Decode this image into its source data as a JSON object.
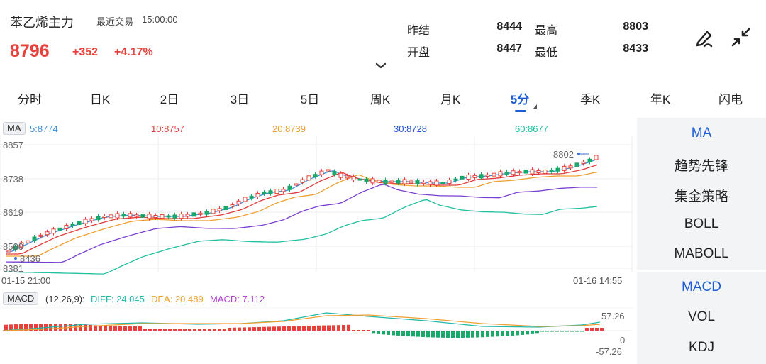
{
  "header": {
    "title": "苯乙烯主力",
    "trade_label": "最近交易",
    "trade_time": "15:00:00",
    "price": "8796",
    "change": "+352",
    "change_pct": "+4.17%",
    "stats": [
      {
        "label": "昨结",
        "value": "8444"
      },
      {
        "label": "最高",
        "value": "8803"
      },
      {
        "label": "开盘",
        "value": "8447"
      },
      {
        "label": "最低",
        "value": "8433"
      }
    ],
    "icons": [
      "draw-pen-icon",
      "collapse-arrows-icon",
      "chevron-down-icon"
    ]
  },
  "tabs": {
    "items": [
      "分时",
      "日K",
      "2日",
      "3日",
      "5日",
      "周K",
      "月K",
      "5分",
      "季K",
      "年K",
      "闪电"
    ],
    "active_index": 7
  },
  "ma_legend": {
    "tag": "MA",
    "items": [
      {
        "label": "5:8774",
        "color": "#3b8fe0"
      },
      {
        "label": "10:8757",
        "color": "#e23b3b"
      },
      {
        "label": "20:8739",
        "color": "#f0a030"
      },
      {
        "label": "30:8728",
        "color": "#7a3fd0"
      },
      {
        "label": "60:8677",
        "color": "#20c0a0"
      }
    ]
  },
  "main_axis": {
    "ticks": [
      "8857",
      "8738",
      "8619",
      "8500",
      "8381"
    ],
    "max_label": "8802",
    "min_label": "8436"
  },
  "time_axis": {
    "start": "01-15 21:00",
    "end": "01-16 14:55"
  },
  "macd_legend": {
    "tag": "MACD",
    "params": "(12,26,9):",
    "diff": "DIFF: 24.045",
    "dea": "DEA: 20.489",
    "macd": "MACD: 7.112",
    "diff_color": "#20b8a8",
    "dea_color": "#f0a030",
    "macd_color": "#b040d0"
  },
  "macd_axis": {
    "top": "57.26",
    "zero": "0",
    "bottom": "-57.26"
  },
  "colors": {
    "up": "#e8403a",
    "down": "#1aa86a",
    "accent": "#1f5fd6"
  },
  "sidebar": {
    "group1": [
      "MA",
      "趋势先锋",
      "集金策略",
      "BOLL",
      "MABOLL"
    ],
    "group1_active": 0,
    "group2": [
      "MACD",
      "VOL",
      "KDJ"
    ],
    "group2_active": 0
  }
}
